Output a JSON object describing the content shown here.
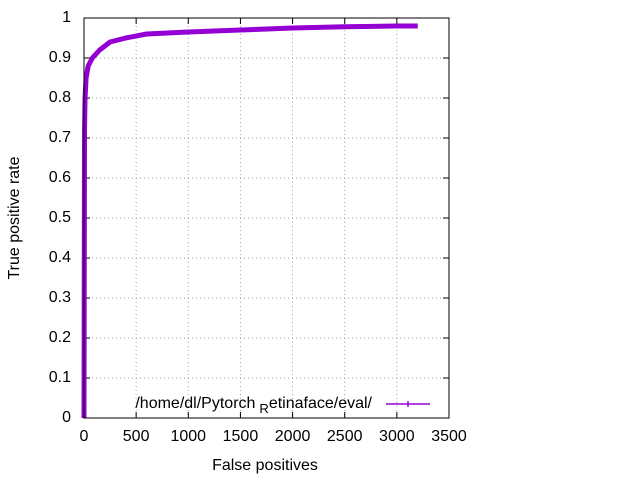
{
  "chart_data": {
    "type": "line",
    "xlabel": "False positives",
    "ylabel": "True positive rate",
    "x": [
      0,
      2,
      5,
      10,
      20,
      40,
      80,
      150,
      250,
      400,
      600,
      1000,
      1500,
      2000,
      2500,
      3000,
      3200
    ],
    "series": [
      {
        "name": "/home/dl/Pytorch_Retinaface/eval/",
        "color": "#9400d3",
        "values": [
          0,
          0.3,
          0.72,
          0.8,
          0.85,
          0.88,
          0.9,
          0.92,
          0.94,
          0.95,
          0.96,
          0.965,
          0.97,
          0.975,
          0.978,
          0.98,
          0.98
        ]
      }
    ],
    "xlim": [
      0,
      3500
    ],
    "xticks": [
      0,
      500,
      1000,
      1500,
      2000,
      2500,
      3000,
      3500
    ],
    "ylim": [
      0,
      1
    ],
    "yticks": [
      0,
      0.1,
      0.2,
      0.3,
      0.4,
      0.5,
      0.6,
      0.7,
      0.8,
      0.9,
      1
    ],
    "grid": true,
    "legend": "bottom-right"
  }
}
